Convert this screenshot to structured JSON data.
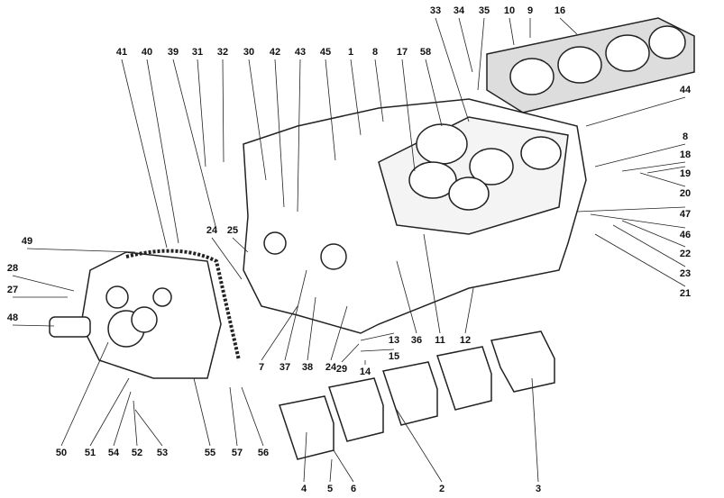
{
  "callouts": [
    {
      "label": "41"
    },
    {
      "label": "40"
    },
    {
      "label": "39"
    },
    {
      "label": "31"
    },
    {
      "label": "32"
    },
    {
      "label": "30"
    },
    {
      "label": "42"
    },
    {
      "label": "43"
    },
    {
      "label": "45"
    },
    {
      "label": "1"
    },
    {
      "label": "8"
    },
    {
      "label": "17"
    },
    {
      "label": "58"
    },
    {
      "label": "33"
    },
    {
      "label": "34"
    },
    {
      "label": "35"
    },
    {
      "label": "10"
    },
    {
      "label": "9"
    },
    {
      "label": "16"
    },
    {
      "label": "44"
    },
    {
      "label": "8"
    },
    {
      "label": "18"
    },
    {
      "label": "19"
    },
    {
      "label": "20"
    },
    {
      "label": "47"
    },
    {
      "label": "46"
    },
    {
      "label": "22"
    },
    {
      "label": "23"
    },
    {
      "label": "21"
    },
    {
      "label": "49"
    },
    {
      "label": "28"
    },
    {
      "label": "27"
    },
    {
      "label": "48"
    },
    {
      "label": "24"
    },
    {
      "label": "25"
    },
    {
      "label": "7"
    },
    {
      "label": "37"
    },
    {
      "label": "38"
    },
    {
      "label": "24"
    },
    {
      "label": "29"
    },
    {
      "label": "13"
    },
    {
      "label": "15"
    },
    {
      "label": "14"
    },
    {
      "label": "36"
    },
    {
      "label": "11"
    },
    {
      "label": "12"
    },
    {
      "label": "50"
    },
    {
      "label": "51"
    },
    {
      "label": "54"
    },
    {
      "label": "52"
    },
    {
      "label": "53"
    },
    {
      "label": "55"
    },
    {
      "label": "57"
    },
    {
      "label": "56"
    },
    {
      "label": "4"
    },
    {
      "label": "5"
    },
    {
      "label": "6"
    },
    {
      "label": "2"
    },
    {
      "label": "3"
    }
  ]
}
